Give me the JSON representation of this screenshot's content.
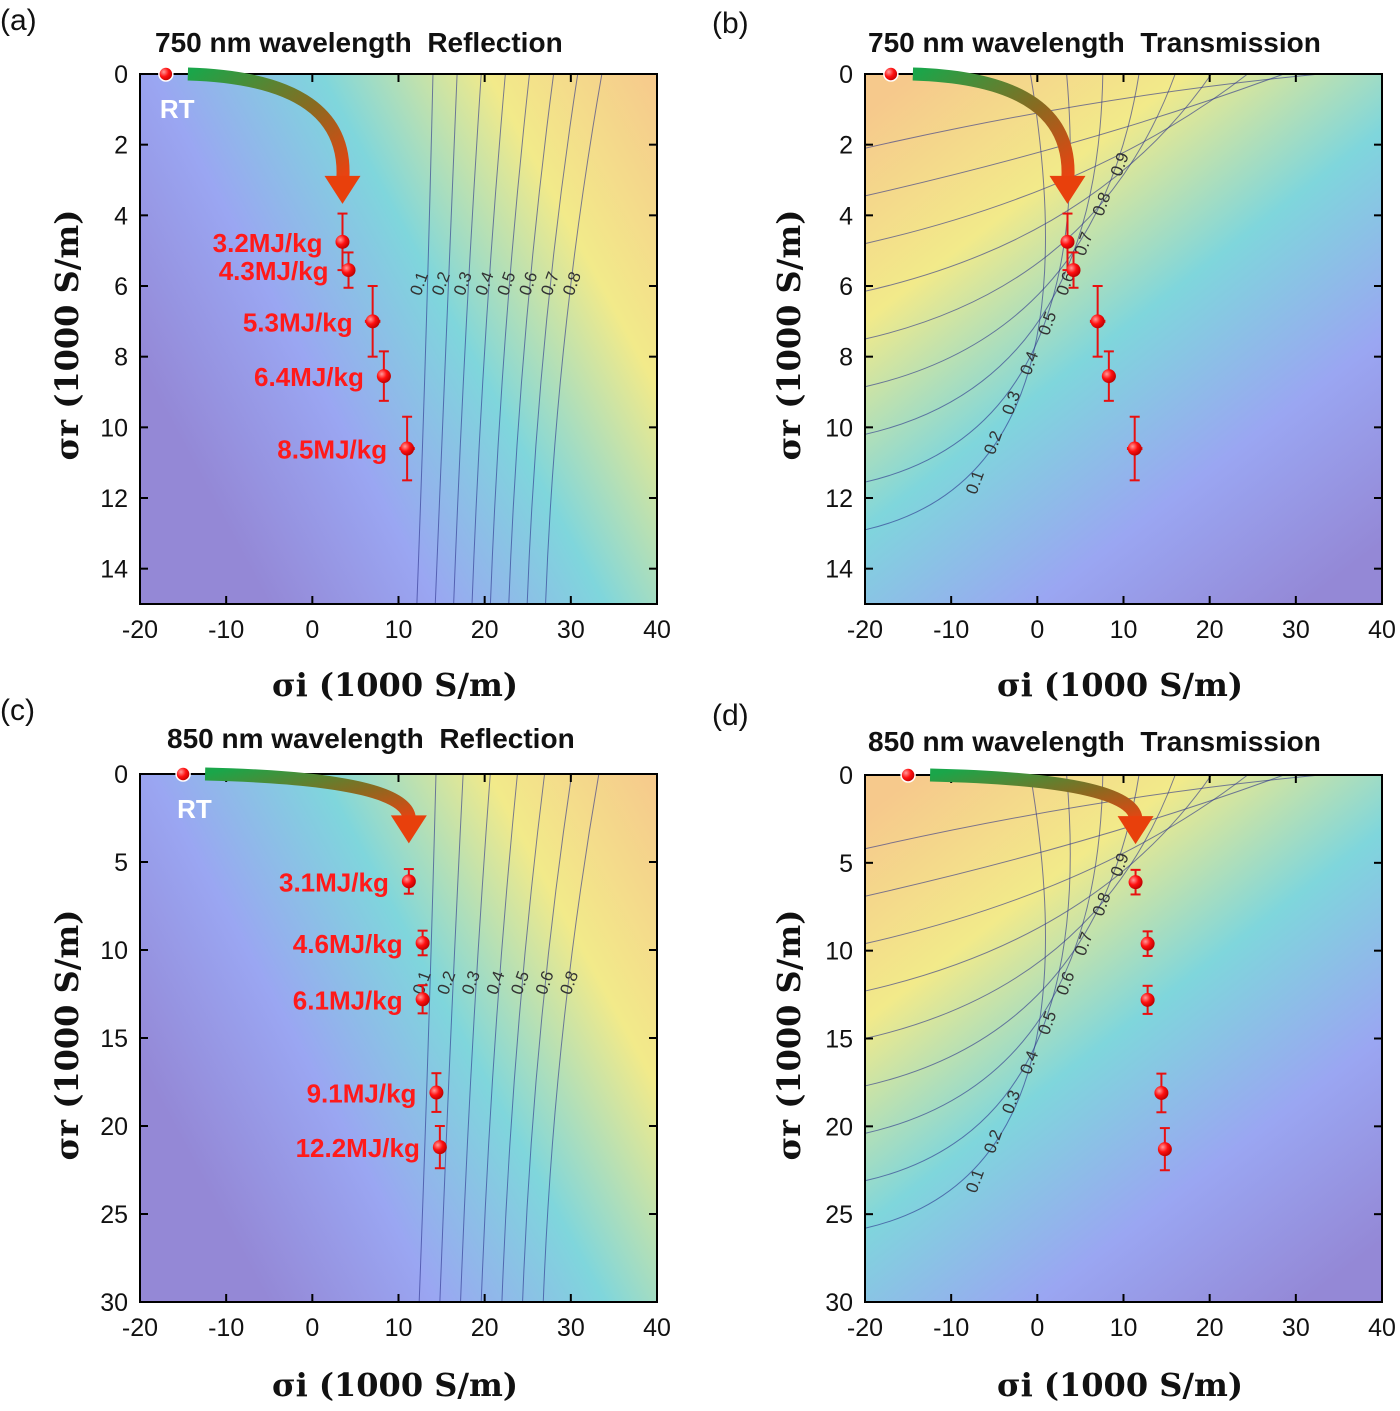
{
  "chart_data": [
    {
      "panel": "(a)",
      "type": "contour",
      "title": "750 nm wavelength  Reflection",
      "xlabel": "σi (1000 S/m)",
      "ylabel": "σr (1000 S/m)",
      "xlim": [
        -20,
        40
      ],
      "ylim": [
        15,
        0
      ],
      "xticks": [
        -20,
        -10,
        0,
        10,
        20,
        30,
        40
      ],
      "yticks": [
        0,
        2,
        4,
        6,
        8,
        10,
        12,
        14
      ],
      "colormap": [
        "#9488d6",
        "#9aa6f2",
        "#7fd6dc",
        "#f2ea8a",
        "#f6c98c"
      ],
      "contour_levels": [
        0.1,
        0.2,
        0.3,
        0.4,
        0.5,
        0.6,
        0.7,
        0.8
      ],
      "room_temperature": {
        "label": "RT",
        "x": -17,
        "y": 0
      },
      "points": [
        {
          "label": "3.2MJ/kg",
          "x": 3.5,
          "y": 4.75,
          "yerr": 0.8,
          "xerr": 0.5
        },
        {
          "label": "4.3MJ/kg",
          "x": 4.2,
          "y": 5.55,
          "yerr": 0.5,
          "xerr": 0.6
        },
        {
          "label": "5.3MJ/kg",
          "x": 7.0,
          "y": 7.0,
          "yerr": 1.0,
          "xerr": 0.9
        },
        {
          "label": "6.4MJ/kg",
          "x": 8.3,
          "y": 8.55,
          "yerr": 0.7,
          "xerr": 0.8
        },
        {
          "label": "8.5MJ/kg",
          "x": 11.0,
          "y": 10.6,
          "yerr": 0.9,
          "xerr": 0.9
        }
      ]
    },
    {
      "panel": "(b)",
      "type": "contour",
      "title": "750 nm wavelength  Transmission",
      "xlabel": "σi (1000 S/m)",
      "ylabel": "σr (1000 S/m)",
      "xlim": [
        -20,
        40
      ],
      "ylim": [
        15,
        0
      ],
      "xticks": [
        -20,
        -10,
        0,
        10,
        20,
        30,
        40
      ],
      "yticks": [
        0,
        2,
        4,
        6,
        8,
        10,
        12,
        14
      ],
      "colormap": [
        "#f6c98c",
        "#f2ea8a",
        "#7fd6dc",
        "#9aa6f2",
        "#9488d6"
      ],
      "contour_levels": [
        0.1,
        0.2,
        0.3,
        0.4,
        0.5,
        0.6,
        0.7,
        0.8,
        0.9
      ],
      "room_temperature": {
        "x": -17,
        "y": 0
      },
      "points": [
        {
          "x": 3.5,
          "y": 4.75,
          "yerr": 0.8,
          "xerr": 0.5
        },
        {
          "x": 4.2,
          "y": 5.55,
          "yerr": 0.5,
          "xerr": 0.6
        },
        {
          "x": 7.0,
          "y": 7.0,
          "yerr": 1.0,
          "xerr": 0.9
        },
        {
          "x": 8.3,
          "y": 8.55,
          "yerr": 0.7,
          "xerr": 0.8
        },
        {
          "x": 11.3,
          "y": 10.6,
          "yerr": 0.9,
          "xerr": 0.9
        }
      ]
    },
    {
      "panel": "(c)",
      "type": "contour",
      "title": "850 nm wavelength  Reflection",
      "xlabel": "σi (1000 S/m)",
      "ylabel": "σr (1000 S/m)",
      "xlim": [
        -20,
        40
      ],
      "ylim": [
        30,
        0
      ],
      "xticks": [
        -20,
        -10,
        0,
        10,
        20,
        30,
        40
      ],
      "yticks": [
        0,
        5,
        10,
        15,
        20,
        25,
        30
      ],
      "colormap": [
        "#9488d6",
        "#9aa6f2",
        "#7fd6dc",
        "#f2ea8a",
        "#f6c98c"
      ],
      "contour_levels": [
        0.1,
        0.2,
        0.3,
        0.4,
        0.5,
        0.6,
        0.8
      ],
      "room_temperature": {
        "label": "RT",
        "x": -15,
        "y": 0
      },
      "points": [
        {
          "label": "3.1MJ/kg",
          "x": 11.2,
          "y": 6.1,
          "yerr": 0.7,
          "xerr": 0.6
        },
        {
          "label": "4.6MJ/kg",
          "x": 12.8,
          "y": 9.6,
          "yerr": 0.7,
          "xerr": 0.6
        },
        {
          "label": "6.1MJ/kg",
          "x": 12.8,
          "y": 12.8,
          "yerr": 0.8,
          "xerr": 0.6
        },
        {
          "label": "9.1MJ/kg",
          "x": 14.4,
          "y": 18.1,
          "yerr": 1.1,
          "xerr": 0.6
        },
        {
          "label": "12.2MJ/kg",
          "x": 14.8,
          "y": 21.2,
          "yerr": 1.2,
          "xerr": 0.7
        }
      ]
    },
    {
      "panel": "(d)",
      "type": "contour",
      "title": "850 nm wavelength  Transmission",
      "xlabel": "σi (1000 S/m)",
      "ylabel": "σr (1000 S/m)",
      "xlim": [
        -20,
        40
      ],
      "ylim": [
        30,
        0
      ],
      "xticks": [
        -20,
        -10,
        0,
        10,
        20,
        30,
        40
      ],
      "yticks": [
        0,
        5,
        10,
        15,
        20,
        25,
        30
      ],
      "colormap": [
        "#f6c98c",
        "#f2ea8a",
        "#7fd6dc",
        "#9aa6f2",
        "#9488d6"
      ],
      "contour_levels": [
        0.1,
        0.2,
        0.3,
        0.4,
        0.5,
        0.6,
        0.7,
        0.8,
        0.9
      ],
      "room_temperature": {
        "x": -15,
        "y": 0
      },
      "points": [
        {
          "x": 11.4,
          "y": 6.1,
          "yerr": 0.7,
          "xerr": 0.6
        },
        {
          "x": 12.8,
          "y": 9.6,
          "yerr": 0.7,
          "xerr": 0.6
        },
        {
          "x": 12.8,
          "y": 12.8,
          "yerr": 0.8,
          "xerr": 0.6
        },
        {
          "x": 14.4,
          "y": 18.1,
          "yerr": 1.1,
          "xerr": 0.6
        },
        {
          "x": 14.8,
          "y": 21.3,
          "yerr": 1.2,
          "xerr": 0.7
        }
      ]
    }
  ]
}
